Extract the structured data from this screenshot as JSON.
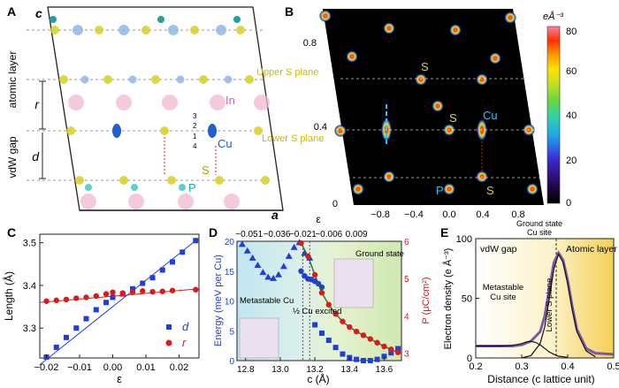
{
  "panels": {
    "A": {
      "letter": "A",
      "axis_c": "c",
      "axis_a": "a",
      "side_top": "atomic layer",
      "side_bottom": "vdW gap",
      "label_r": "r",
      "label_d": "d",
      "elem_In": "In",
      "elem_Cu": "Cu",
      "elem_S": "S",
      "elem_P": "P",
      "cu_site_numbers": [
        "3",
        "2",
        "1",
        "4"
      ]
    },
    "B": {
      "letter": "B",
      "plane_upper": "Upper S plane",
      "plane_lower": "Lower S plane",
      "lbl_S1": "S",
      "lbl_S2": "S",
      "lbl_S3": "S",
      "lbl_Cu": "Cu",
      "lbl_P": "P",
      "yticks": [
        "0.8",
        "0.4",
        "0"
      ],
      "xticks": [
        "−0.8",
        "−0.4",
        "0.0",
        "0.4",
        "0.8"
      ],
      "colorbar_unit": "eÅ⁻³",
      "colorbar_ticks": [
        "80",
        "60",
        "40",
        "20",
        "0"
      ],
      "colorbar_colors": [
        "#000000",
        "#2a0a5e",
        "#3b2ad6",
        "#1fa3e8",
        "#2fd0b0",
        "#66d640",
        "#c8e020",
        "#ffe000",
        "#ff9a00",
        "#ff3000",
        "#f00030",
        "#ff80a0"
      ]
    },
    "C": {
      "letter": "C",
      "ylabel": "Length (Å)",
      "xlabel": "ε",
      "legend_d": "d",
      "legend_r": "r",
      "color_d": "#1f3fdc",
      "color_r": "#e01818",
      "xticks": [
        "−0.02",
        "−0.01",
        "0.00",
        "0.01",
        "0.02"
      ],
      "yticks": [
        "3.5",
        "3.4",
        "3.3"
      ]
    },
    "D": {
      "letter": "D",
      "top_axis_label": "ε",
      "top_ticks": [
        "−0.051",
        "−0.036",
        "−0.021",
        "−0.006",
        "0.009"
      ],
      "xlabel": "c (Å)",
      "xticks": [
        "12.8",
        "13.0",
        "13.2",
        "13.4",
        "13.6"
      ],
      "ylabel_left": "Energy (meV per Cu)",
      "ylabel_right": "P (μC/cm²)",
      "yticks_left": [
        "20",
        "15",
        "10",
        "5",
        "0"
      ],
      "yticks_right": [
        "6",
        "5",
        "4",
        "3"
      ],
      "annot_metastable": "Metastable Cu",
      "annot_excited": "½ Cu excited",
      "annot_ground": "Ground state",
      "color_energy": "#1f3fdc",
      "color_polarization": "#e01818"
    },
    "E": {
      "letter": "E",
      "ylabel": "Electron density (e Å⁻³)",
      "xlabel": "Distance (c lattice unit)",
      "xticks": [
        "0.2",
        "0.3",
        "0.4",
        "0.5"
      ],
      "yticks": [
        "100",
        "50",
        "0"
      ],
      "region_gap": "vdW gap",
      "region_layer": "Atomic layer",
      "annot_ground": "Ground state Cu site",
      "annot_meta": "Metastable Cu site",
      "annot_plane": "Lower S plane"
    }
  },
  "chart_data": [
    {
      "id": "C",
      "type": "scatter",
      "title": "",
      "xlabel": "ε",
      "ylabel": "Length (Å)",
      "xlim": [
        -0.022,
        0.026
      ],
      "ylim": [
        3.23,
        3.52
      ],
      "series": [
        {
          "name": "d",
          "color": "#1f3fdc",
          "marker": "square",
          "x": [
            -0.02,
            -0.017,
            -0.014,
            -0.011,
            -0.008,
            -0.005,
            -0.002,
            0.0,
            0.003,
            0.006,
            0.009,
            0.012,
            0.015,
            0.018,
            0.021,
            0.025
          ],
          "y": [
            3.232,
            3.255,
            3.278,
            3.3,
            3.322,
            3.343,
            3.36,
            3.372,
            3.38,
            3.392,
            3.405,
            3.418,
            3.436,
            3.455,
            3.478,
            3.505
          ],
          "fit": [
            [
              -0.022,
              3.214
            ],
            [
              0.025,
              3.505
            ]
          ]
        },
        {
          "name": "r",
          "color": "#e01818",
          "marker": "circle",
          "x": [
            -0.02,
            -0.017,
            -0.014,
            -0.011,
            -0.008,
            -0.005,
            -0.002,
            0.0,
            0.003,
            0.006,
            0.009,
            0.012,
            0.015,
            0.018,
            0.025
          ],
          "y": [
            3.363,
            3.365,
            3.367,
            3.37,
            3.372,
            3.375,
            3.38,
            3.384,
            3.382,
            3.384,
            3.387,
            3.385,
            3.386,
            3.388,
            3.39
          ],
          "fit": [
            [
              -0.022,
              3.36
            ],
            [
              0.026,
              3.392
            ]
          ]
        }
      ]
    },
    {
      "id": "D",
      "type": "scatter",
      "xlabel": "c (Å)",
      "ylabel": "Energy (meV per Cu)",
      "y2label": "P (μC/cm²)",
      "xlim": [
        12.75,
        13.7
      ],
      "ylim": [
        0,
        20
      ],
      "y2lim": [
        2.8,
        6.0
      ],
      "series": [
        {
          "name": "Energy (metastable)",
          "axis": "left",
          "color": "#1f3fdc",
          "marker": "triangle",
          "x": [
            12.78,
            12.81,
            12.84,
            12.87,
            12.9,
            12.93,
            12.96,
            12.99,
            13.02,
            13.05,
            13.08,
            13.11,
            13.14,
            13.17
          ],
          "y": [
            19.5,
            18.4,
            17.2,
            16.0,
            14.8,
            14.0,
            13.8,
            14.4,
            15.8,
            17.5,
            19.0,
            19.8,
            18.0,
            17.2
          ]
        },
        {
          "name": "Energy (½ Cu excited)",
          "axis": "left",
          "color": "#1f3fdc",
          "marker": "circle",
          "x": [
            13.12,
            13.14,
            13.16,
            13.18,
            13.2,
            13.22,
            13.24
          ],
          "y": [
            15.0,
            14.2,
            13.7,
            13.6,
            13.3,
            12.9,
            12.3
          ]
        },
        {
          "name": "Energy (ground state)",
          "axis": "left",
          "color": "#1f3fdc",
          "marker": "square",
          "x": [
            13.2,
            13.24,
            13.28,
            13.32,
            13.36,
            13.4,
            13.44,
            13.48,
            13.52,
            13.56,
            13.6,
            13.64,
            13.68
          ],
          "y": [
            6.0,
            4.6,
            3.4,
            2.2,
            1.1,
            0.5,
            0.2,
            0.0,
            0.0,
            0.2,
            0.7,
            1.3,
            2.0
          ]
        },
        {
          "name": "P",
          "axis": "right",
          "color": "#e01818",
          "marker": "circle",
          "x": [
            13.12,
            13.16,
            13.2,
            13.24,
            13.28,
            13.32,
            13.36,
            13.4,
            13.44,
            13.48,
            13.52,
            13.56,
            13.6,
            13.64,
            13.68
          ],
          "y": [
            5.95,
            5.6,
            5.1,
            4.62,
            4.3,
            4.05,
            3.85,
            3.7,
            3.58,
            3.48,
            3.38,
            3.28,
            3.18,
            3.1,
            3.02
          ]
        }
      ]
    },
    {
      "id": "E",
      "type": "line",
      "xlabel": "Distance (c lattice unit)",
      "ylabel": "Electron density (e Å⁻³)",
      "xlim": [
        0.2,
        0.5
      ],
      "ylim": [
        0,
        100
      ],
      "series": [
        {
          "name": "total",
          "color": "#7a5aa8",
          "x": [
            0.2,
            0.24,
            0.28,
            0.3,
            0.32,
            0.34,
            0.35,
            0.36,
            0.37,
            0.38,
            0.39,
            0.4,
            0.41,
            0.42,
            0.44,
            0.46,
            0.5
          ],
          "y": [
            10,
            10,
            10,
            11,
            14,
            22,
            35,
            58,
            80,
            88,
            82,
            65,
            43,
            24,
            8,
            4,
            3
          ]
        },
        {
          "name": "metastable component",
          "color": "#111111",
          "x": [
            0.2,
            0.26,
            0.28,
            0.3,
            0.31,
            0.32,
            0.33,
            0.34,
            0.35,
            0.36,
            0.37,
            0.38,
            0.4
          ],
          "y": [
            10,
            10,
            10.5,
            12,
            13.5,
            14,
            13,
            11,
            8,
            5,
            3,
            1.5,
            0.5
          ]
        },
        {
          "name": "ground-state component",
          "color": "#111111",
          "x": [
            0.3,
            0.32,
            0.34,
            0.35,
            0.36,
            0.37,
            0.38,
            0.39,
            0.4,
            0.41,
            0.42,
            0.44,
            0.46
          ],
          "y": [
            0,
            2,
            12,
            26,
            50,
            75,
            87,
            80,
            62,
            40,
            22,
            6,
            1
          ]
        }
      ]
    }
  ]
}
